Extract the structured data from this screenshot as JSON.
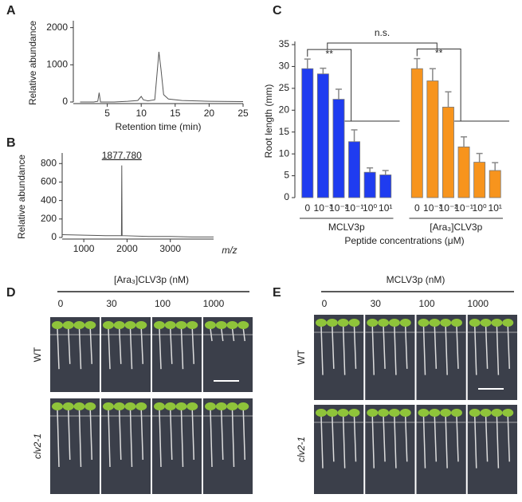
{
  "chart_data": [
    {
      "type": "line",
      "panel": "A",
      "xlabel": "Retention time (min)",
      "ylabel": "Relative abundance",
      "color": "#555555",
      "x": [
        1,
        2,
        3,
        3.6,
        3.8,
        4,
        4.5,
        6,
        8,
        9.5,
        10,
        10.3,
        11,
        12,
        12.3,
        12.6,
        12.9,
        13.3,
        14,
        16,
        20,
        25
      ],
      "values": [
        0,
        0,
        0,
        20,
        250,
        0,
        0,
        0,
        20,
        40,
        150,
        60,
        30,
        60,
        700,
        1350,
        900,
        200,
        80,
        40,
        20,
        10
      ],
      "xlim": [
        0,
        25
      ],
      "xticks": [
        5,
        10,
        15,
        20,
        25
      ],
      "ylim": [
        0,
        2100
      ],
      "yticks": [
        0,
        1000,
        2000
      ]
    },
    {
      "type": "line",
      "panel": "B",
      "xlabel": "m/z",
      "ylabel": "Relative abundance",
      "color": "#555555",
      "annotation": "1877.780",
      "x": [
        500,
        1000,
        1500,
        1870,
        1877.78,
        1885,
        2500,
        3000,
        3500,
        4000
      ],
      "values": [
        30,
        25,
        20,
        20,
        780,
        20,
        10,
        10,
        5,
        5
      ],
      "xlim": [
        500,
        4000
      ],
      "xticks": [
        1000,
        2000,
        3000
      ],
      "ylim": [
        0,
        880
      ],
      "yticks": [
        0,
        200,
        400,
        600,
        800
      ]
    },
    {
      "type": "bar",
      "panel": "C",
      "xlabel": "Peptide concentrations (μM)",
      "ylabel": "Root length (mm)",
      "categories": [
        "0",
        "10⁻³",
        "10⁻²",
        "10⁻¹",
        "10⁰",
        "10¹"
      ],
      "series": [
        {
          "name": "MCLV3p",
          "color": "#1f3cf0",
          "values": [
            29.5,
            28.3,
            22.5,
            12.8,
            5.8,
            5.2
          ],
          "errors": [
            2.2,
            1.3,
            2.3,
            2.7,
            1.0,
            1.0
          ]
        },
        {
          "name": "[Ara₃]CLV3p",
          "color": "#f7941d",
          "values": [
            29.5,
            26.7,
            20.7,
            11.6,
            8.1,
            6.2
          ],
          "errors": [
            2.3,
            2.8,
            3.5,
            2.3,
            2.0,
            1.8
          ]
        }
      ],
      "annotations": [
        "**",
        "**",
        "n.s."
      ],
      "ylim": [
        0,
        35
      ],
      "yticks": [
        0,
        5,
        10,
        15,
        20,
        25,
        30,
        35
      ]
    }
  ],
  "photo_panels": [
    {
      "panel": "D",
      "title": "[Ara₃]CLV3p (nM)",
      "columns": [
        "0",
        "30",
        "100",
        "1000"
      ],
      "rows": [
        "WT",
        "clv2-1"
      ]
    },
    {
      "panel": "E",
      "title": "MCLV3p (nM)",
      "columns": [
        "0",
        "30",
        "100",
        "1000"
      ],
      "rows": [
        "WT",
        "clv2-1"
      ]
    }
  ]
}
